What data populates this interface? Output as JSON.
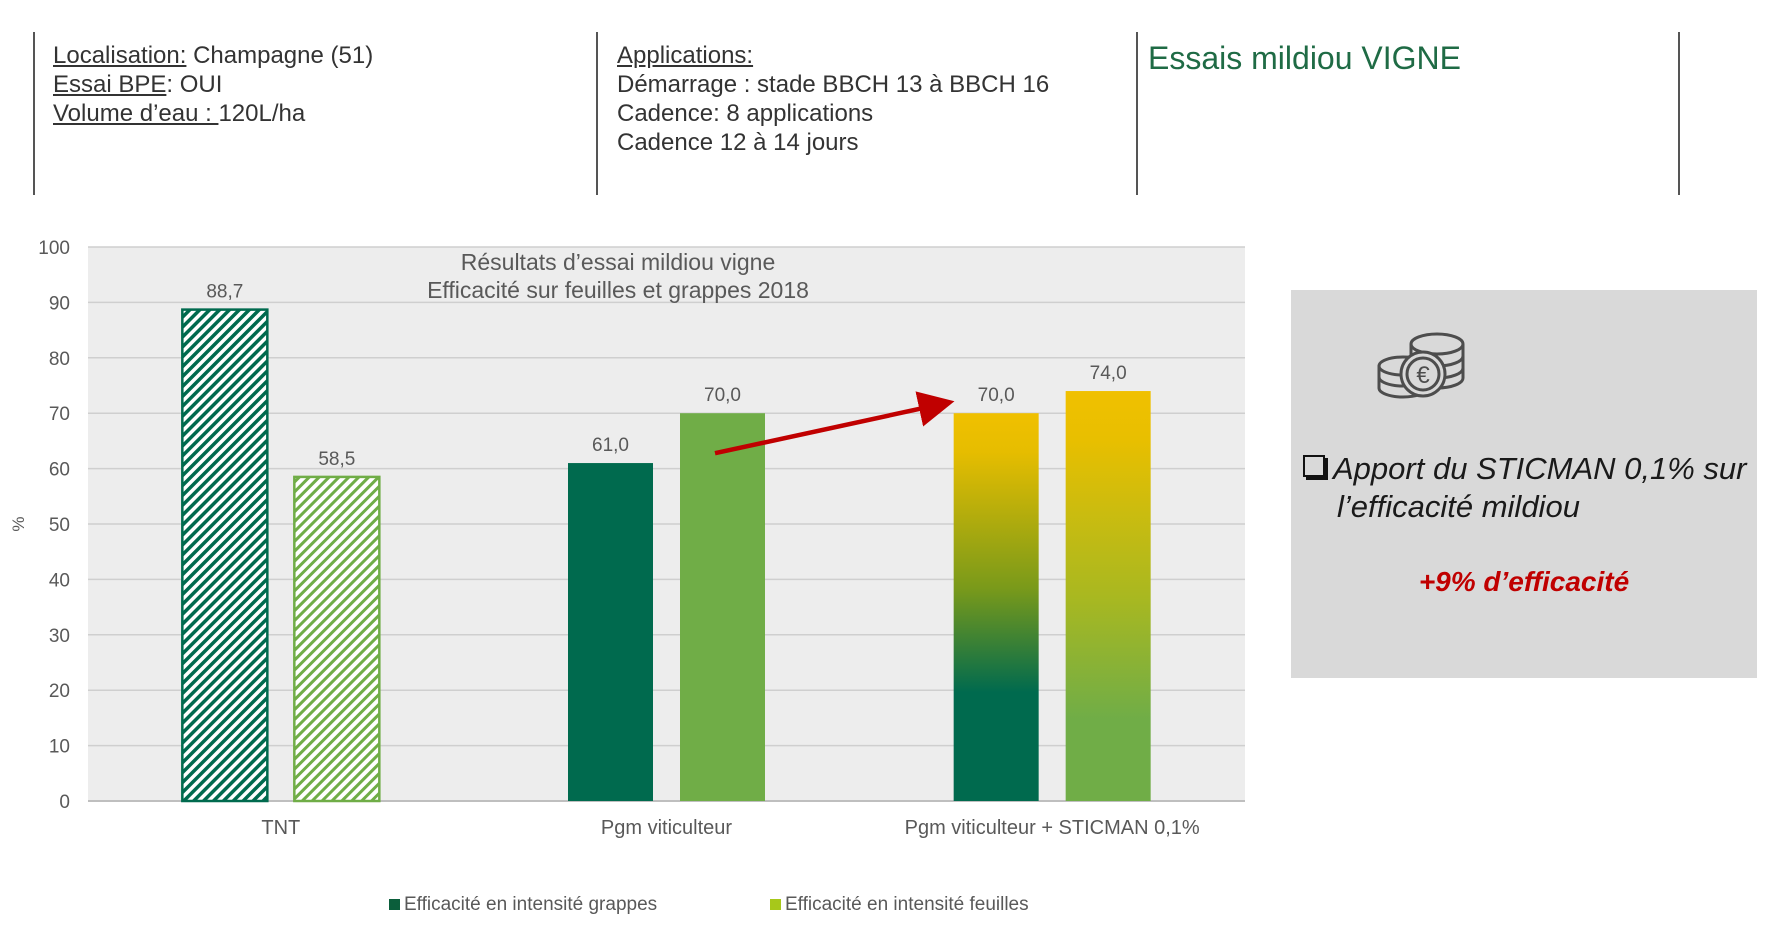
{
  "header": {
    "left": {
      "loc_label": "Localisation:",
      "loc_value": " Champagne (51)",
      "bpe_label": "Essai BPE",
      "bpe_value": ": OUI",
      "vol_label": "Volume d’eau : ",
      "vol_value": "120L/ha"
    },
    "middle": {
      "title": "Applications:",
      "line1": "Démarrage : stade BBCH 13 à BBCH 16",
      "line2": "Cadence: 8 applications",
      "line3": "Cadence 12 à 14 jours"
    },
    "right_title": "Essais mildiou VIGNE"
  },
  "callout": {
    "icon": "euro-coins-icon",
    "bullet_line1": "Apport du STICMAN 0,1% sur",
    "bullet_line2": "l’efficacité mildiou",
    "gain": "+9% d’efficacité"
  },
  "chart_data": {
    "type": "bar",
    "title": "Résultats d’essai mildiou vigne",
    "subtitle": "Efficacité sur feuilles et grappes 2018",
    "ylabel": "%",
    "ylim": [
      0,
      100
    ],
    "yticks": [
      0,
      10,
      20,
      30,
      40,
      50,
      60,
      70,
      80,
      90,
      100
    ],
    "grid": true,
    "legend_position": "bottom",
    "categories": [
      "TNT",
      "Pgm  viticulteur",
      "Pgm viticulteur + STICMAN 0,1%"
    ],
    "series": [
      {
        "name": "Efficacité en intensité grappes",
        "values": [
          88.7,
          61.0,
          70.0
        ],
        "labels": [
          "88,7",
          "61,0",
          "70,0"
        ],
        "color": "#006a4e"
      },
      {
        "name": "Efficacité en intensité feuilles",
        "values": [
          58.5,
          70.0,
          74.0
        ],
        "labels": [
          "58,5",
          "70,0",
          "74,0"
        ],
        "color": "#70ad47"
      }
    ],
    "legend_colors": [
      "#0b5e3b",
      "#a7c81a"
    ],
    "gradient_top_color": "#f0c000",
    "arrow_color": "#c00000"
  }
}
